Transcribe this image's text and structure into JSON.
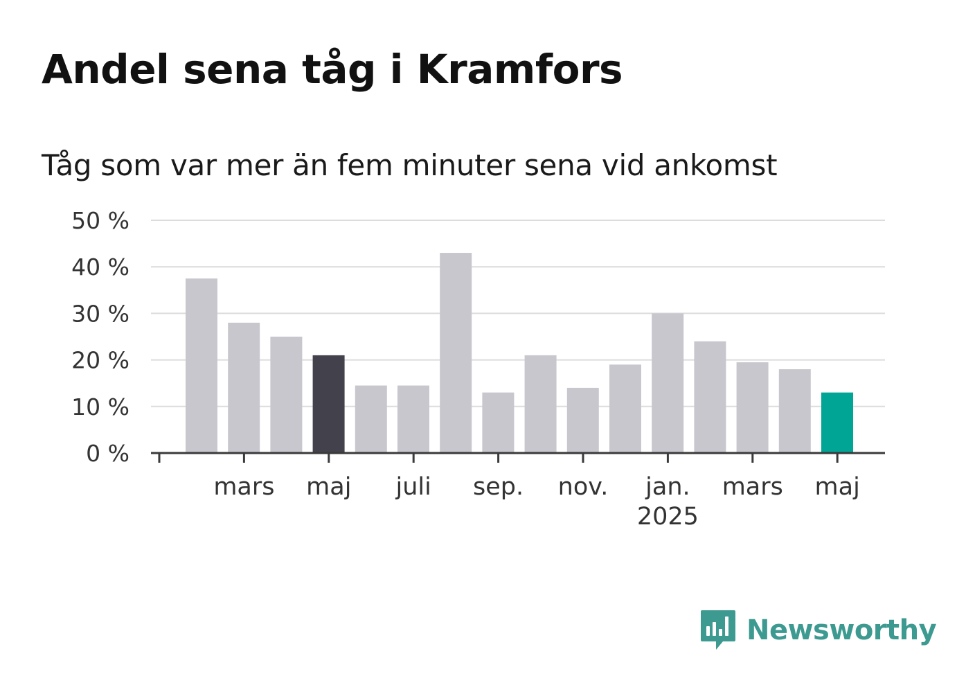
{
  "title": "Andel sena tåg i Kramfors",
  "subtitle": "Tåg som var mer än fem minuter sena vid ankomst",
  "brand": {
    "name": "Newsworthy"
  },
  "colors": {
    "bar_default": "#c8c7cd",
    "bar_highlight_dark": "#43424c",
    "bar_highlight_teal": "#00a595",
    "grid": "#dcdcdc",
    "axis": "#3a3a3a",
    "text": "#333333",
    "brand": "#3d9a91"
  },
  "chart_data": {
    "type": "bar",
    "ylim": [
      0,
      50
    ],
    "y_ticks": [
      {
        "value": 0,
        "label": "0 %"
      },
      {
        "value": 10,
        "label": "10 %"
      },
      {
        "value": 20,
        "label": "20 %"
      },
      {
        "value": 30,
        "label": "30 %"
      },
      {
        "value": 40,
        "label": "40 %"
      },
      {
        "value": 50,
        "label": "50 %"
      }
    ],
    "grid": true,
    "x_ticks": [
      {
        "index": 0,
        "label": ""
      },
      {
        "index": 2,
        "label": "mars"
      },
      {
        "index": 4,
        "label": "maj"
      },
      {
        "index": 6,
        "label": "juli"
      },
      {
        "index": 8,
        "label": "sep."
      },
      {
        "index": 10,
        "label": "nov."
      },
      {
        "index": 12,
        "label": "jan.",
        "sublabel": "2025"
      },
      {
        "index": 14,
        "label": "mars"
      },
      {
        "index": 16,
        "label": "maj"
      }
    ],
    "values": [
      37.5,
      28,
      25,
      21,
      14.5,
      14.5,
      43,
      13,
      21,
      14,
      19,
      30,
      24,
      19.5,
      18,
      13
    ],
    "highlight": {
      "3": "dark",
      "15": "teal"
    }
  }
}
